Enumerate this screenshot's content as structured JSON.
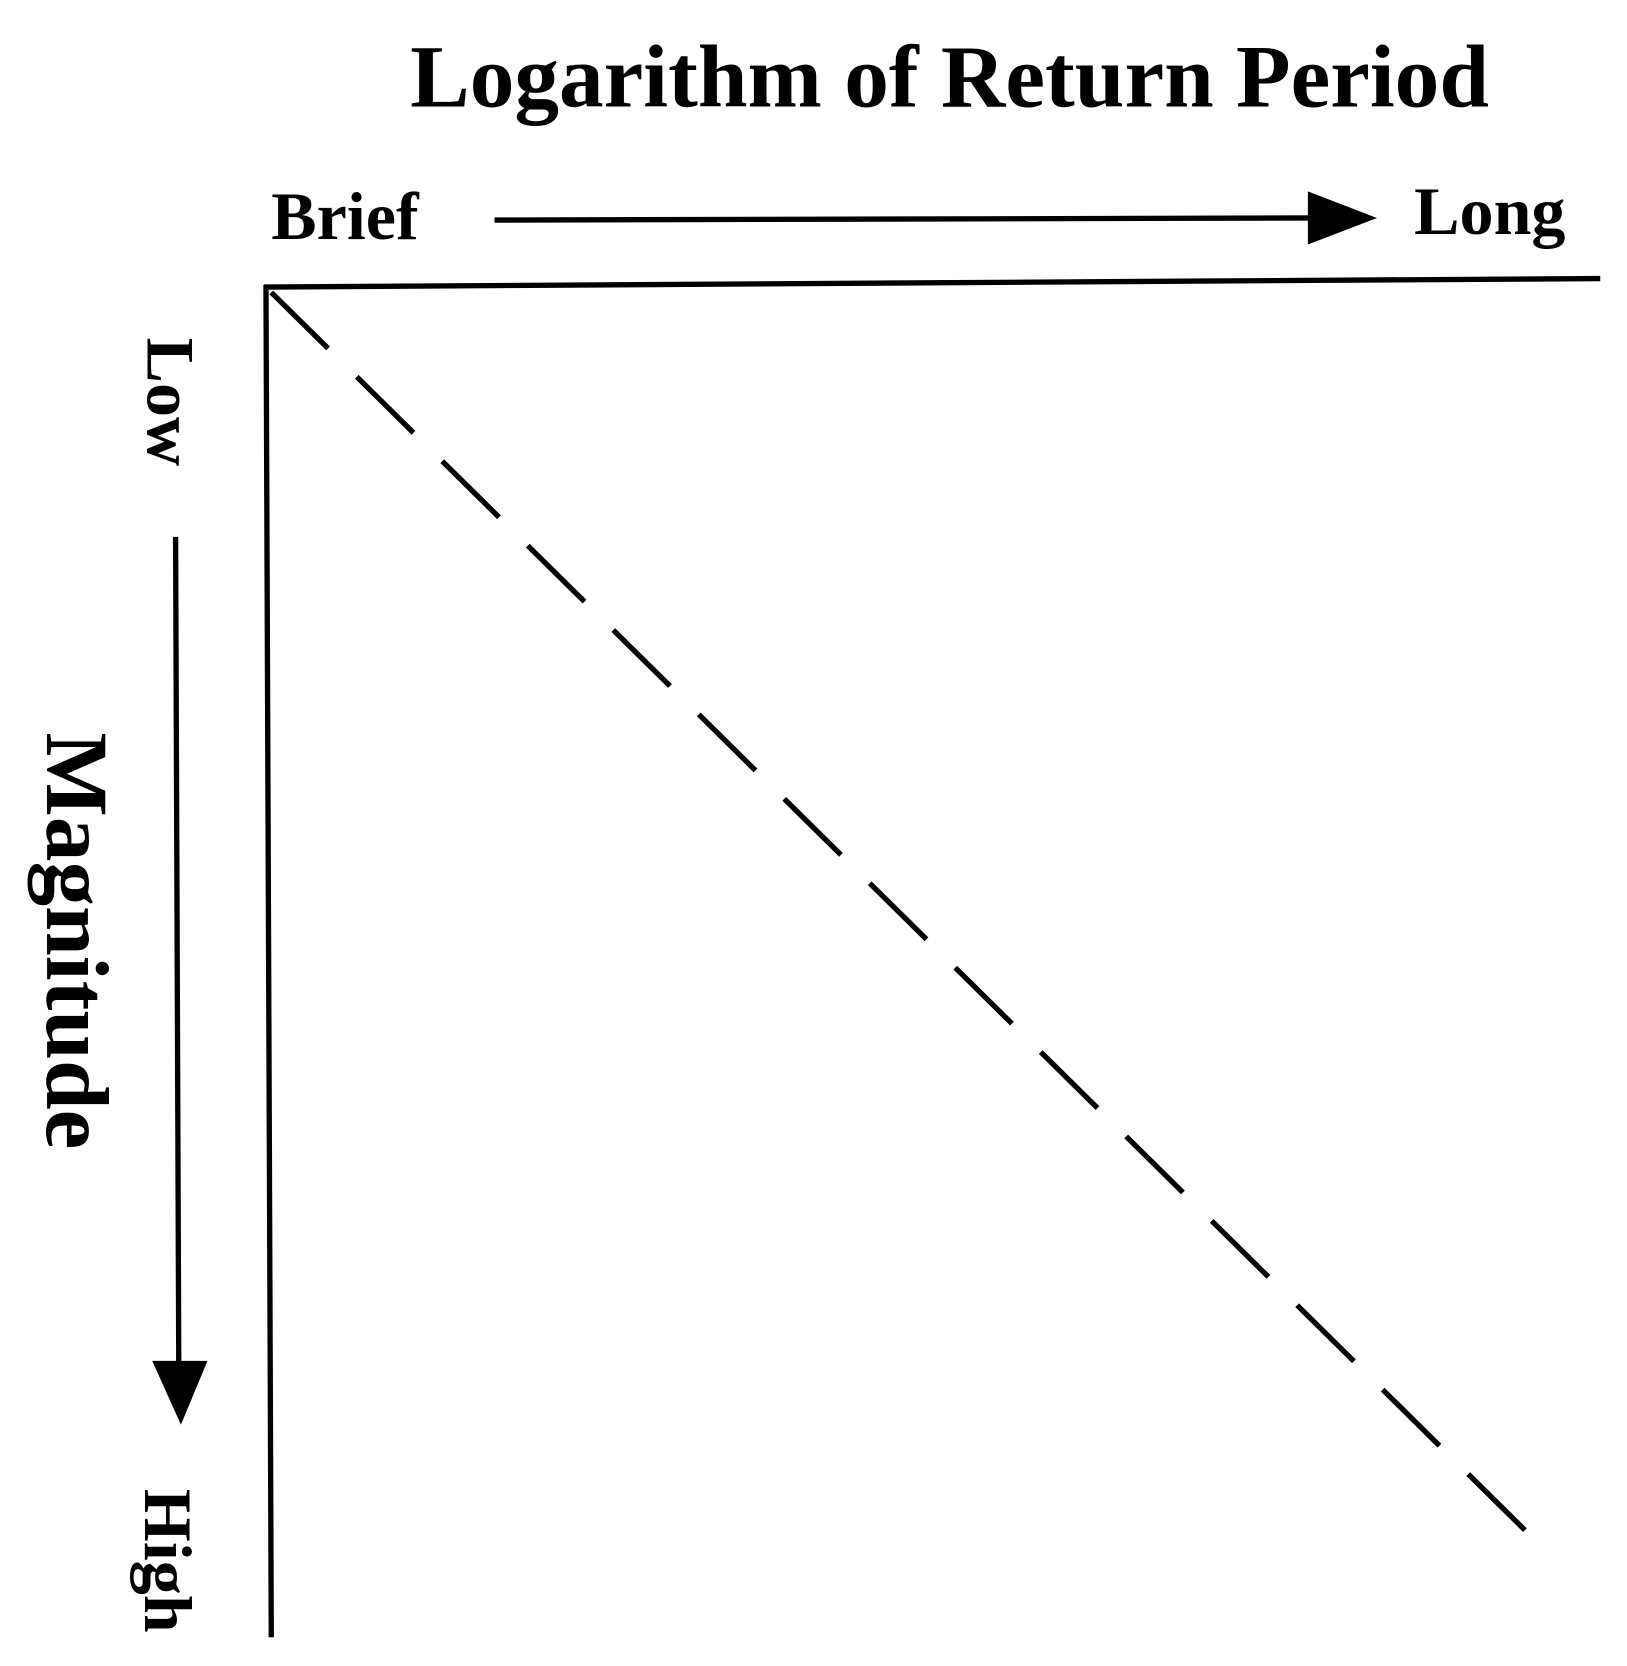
{
  "title": "Logarithm of Return Period",
  "x_axis": {
    "start_label": "Brief",
    "end_label": "Long"
  },
  "y_axis": {
    "start_label": "Low",
    "title": "Magnitude",
    "end_label": "High"
  }
}
